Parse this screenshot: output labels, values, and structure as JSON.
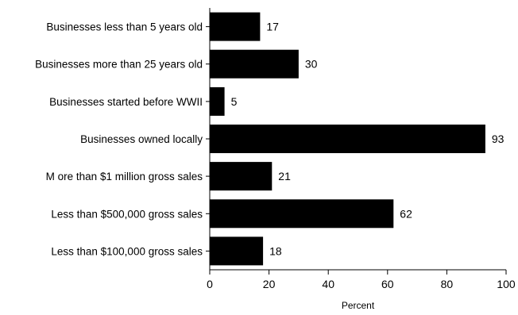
{
  "chart_data": {
    "type": "bar",
    "orientation": "horizontal",
    "title": "",
    "xlabel": "Percent",
    "ylabel": "",
    "xlim": [
      0,
      100
    ],
    "xticks": [
      0,
      20,
      40,
      60,
      80,
      100
    ],
    "grid": false,
    "legend": "none",
    "bar_color": "#000000",
    "categories": [
      "Businesses less than 5 years old",
      "Businesses more than 25 years old",
      "Businesses started before WWII",
      "Businesses owned locally",
      "M ore than $1 million gross sales",
      "Less than $500,000 gross sales",
      "Less than $100,000 gross sales"
    ],
    "values": [
      17,
      30,
      5,
      93,
      21,
      62,
      18
    ],
    "value_labels": [
      "17",
      "30",
      "5",
      "93",
      "21",
      "62",
      "18"
    ],
    "tick_labels": [
      "0",
      "20",
      "40",
      "60",
      "80",
      "100"
    ]
  }
}
